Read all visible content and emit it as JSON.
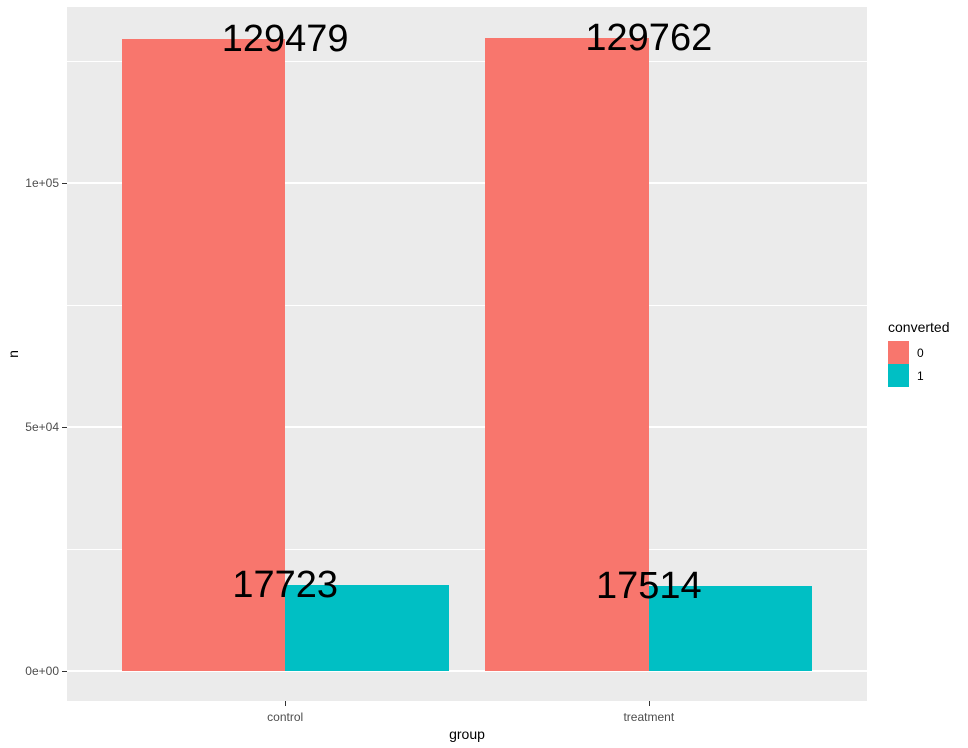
{
  "chart_data": {
    "type": "bar",
    "title": "",
    "xlabel": "group",
    "ylabel": "n",
    "categories": [
      "control",
      "treatment"
    ],
    "series": [
      {
        "name": "0",
        "color": "#F8766D",
        "values": [
          129479,
          129762
        ]
      },
      {
        "name": "1",
        "color": "#00BFC4",
        "values": [
          17723,
          17514
        ]
      }
    ],
    "bar_value_labels": [
      [
        "129479",
        "129762"
      ],
      [
        "17723",
        "17514"
      ]
    ],
    "ylim": [
      -6150,
      136070
    ],
    "y_major_ticks": [
      {
        "value": 0,
        "label": "0e+00"
      },
      {
        "value": 50000,
        "label": "5e+04"
      },
      {
        "value": 100000,
        "label": "1e+05"
      }
    ],
    "y_minor_ticks": [
      25000,
      75000,
      125000
    ],
    "grid": true,
    "legend": {
      "title": "converted",
      "position": "right",
      "entries": [
        {
          "label": "0",
          "color": "#F8766D"
        },
        {
          "label": "1",
          "color": "#00BFC4"
        }
      ]
    },
    "colors": {
      "panel_background": "#EBEBEB",
      "gridline": "#FFFFFF",
      "axis_text": "#4D4D4D",
      "tick_mark": "#333333",
      "bar_label_text": "#000000"
    }
  }
}
